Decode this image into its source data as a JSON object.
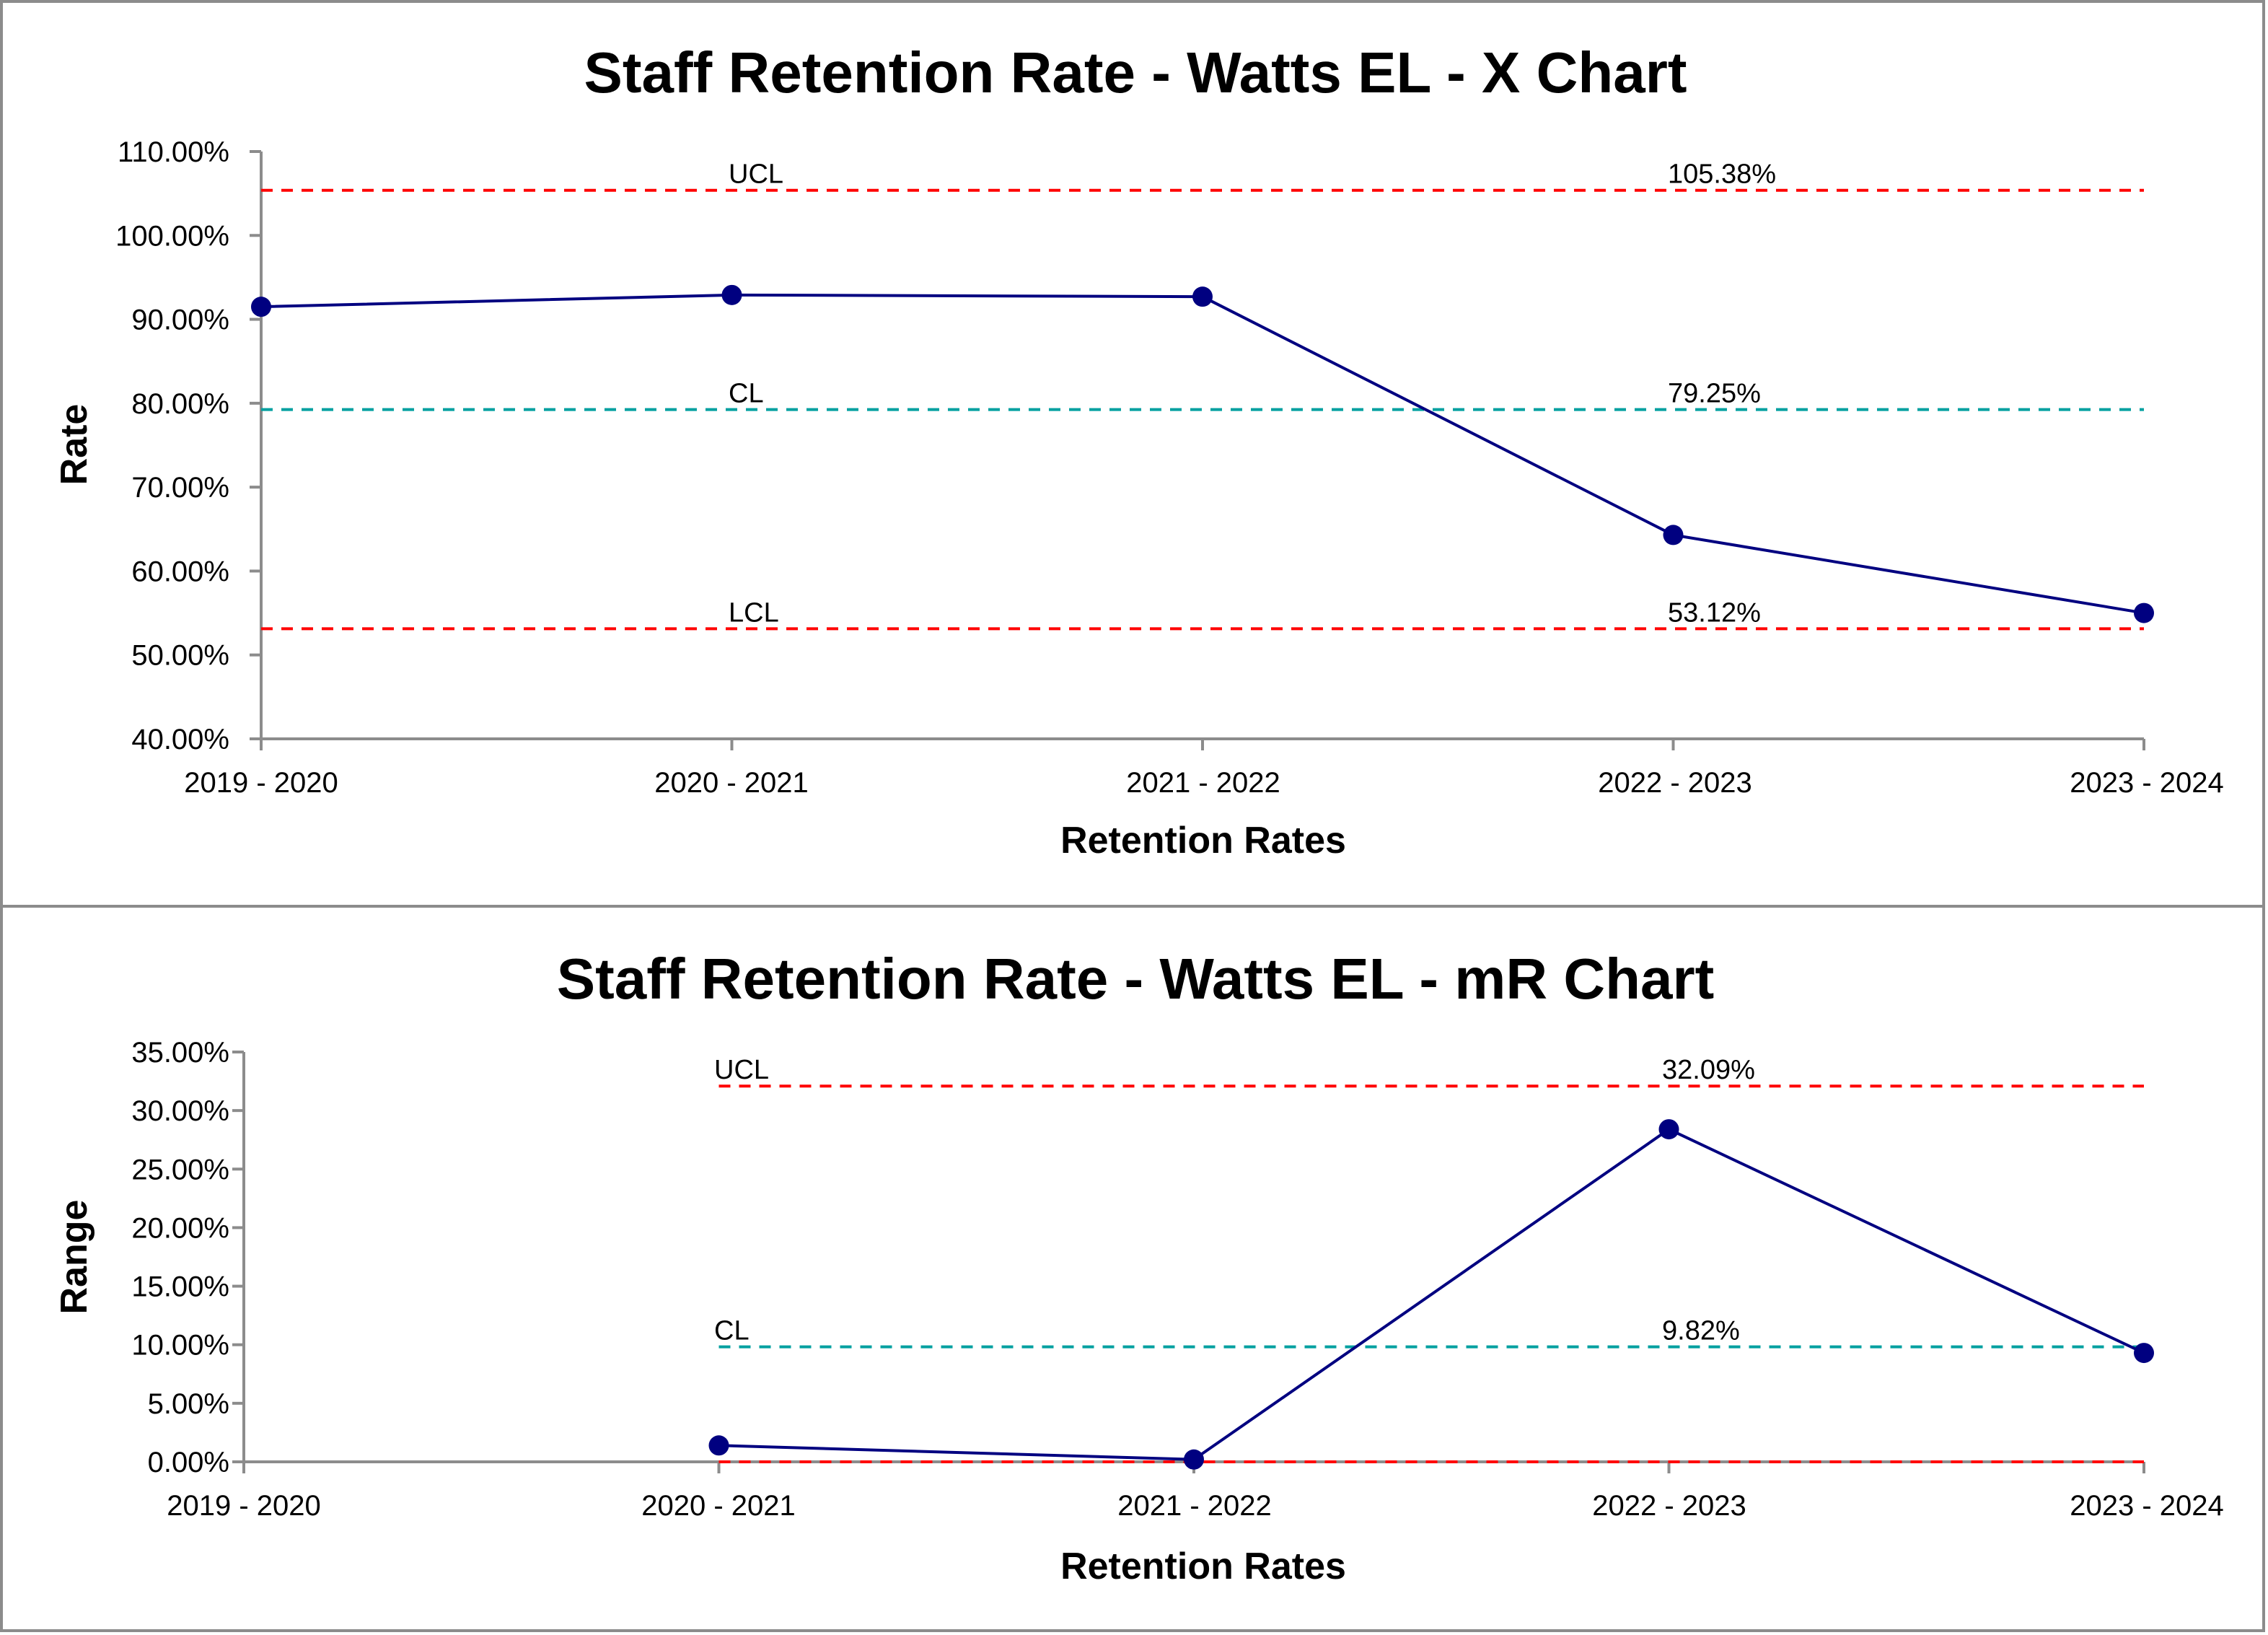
{
  "chart_data": [
    {
      "type": "line",
      "title": "Staff Retention Rate - Watts EL - X Chart",
      "xlabel": "Retention Rates",
      "ylabel": "Rate",
      "categories": [
        "2019 - 2020",
        "2020 - 2021",
        "2021 - 2022",
        "2022 - 2023",
        "2023 - 2024"
      ],
      "ylim": [
        40,
        110
      ],
      "ytick_labels": [
        "40.00%",
        "50.00%",
        "60.00%",
        "70.00%",
        "80.00%",
        "90.00%",
        "100.00%",
        "110.00%"
      ],
      "series": [
        {
          "name": "Rate",
          "values": [
            91.5,
            92.9,
            92.7,
            64.3,
            55.0
          ],
          "color": "#000080"
        }
      ],
      "control_lines": [
        {
          "name": "UCL",
          "value": 105.38,
          "label": "UCL",
          "value_label": "105.38%",
          "color": "#ff0000",
          "start_index": 0
        },
        {
          "name": "CL",
          "value": 79.25,
          "label": "CL",
          "value_label": "79.25%",
          "color": "#00a0a0",
          "start_index": 0
        },
        {
          "name": "LCL",
          "value": 53.12,
          "label": "LCL",
          "value_label": "53.12%",
          "color": "#ff0000",
          "start_index": 0
        }
      ]
    },
    {
      "type": "line",
      "title": "Staff Retention Rate - Watts EL - mR Chart",
      "xlabel": "Retention Rates",
      "ylabel": "Range",
      "categories": [
        "2019 - 2020",
        "2020 - 2021",
        "2021 - 2022",
        "2022 - 2023",
        "2023 - 2024"
      ],
      "ylim": [
        0,
        35
      ],
      "ytick_labels": [
        "0.00%",
        "5.00%",
        "10.00%",
        "15.00%",
        "20.00%",
        "25.00%",
        "30.00%",
        "35.00%"
      ],
      "series": [
        {
          "name": "Range",
          "values": [
            null,
            1.4,
            0.2,
            28.4,
            9.3
          ],
          "color": "#000080"
        }
      ],
      "control_lines": [
        {
          "name": "UCL",
          "value": 32.09,
          "label": "UCL",
          "value_label": "32.09%",
          "color": "#ff0000",
          "start_index": 1
        },
        {
          "name": "CL",
          "value": 9.82,
          "label": "CL",
          "value_label": "9.82%",
          "color": "#00a0a0",
          "start_index": 1
        },
        {
          "name": "LCL",
          "value": 0,
          "label": "",
          "value_label": "",
          "color": "#ff0000",
          "start_index": 1
        }
      ]
    }
  ]
}
